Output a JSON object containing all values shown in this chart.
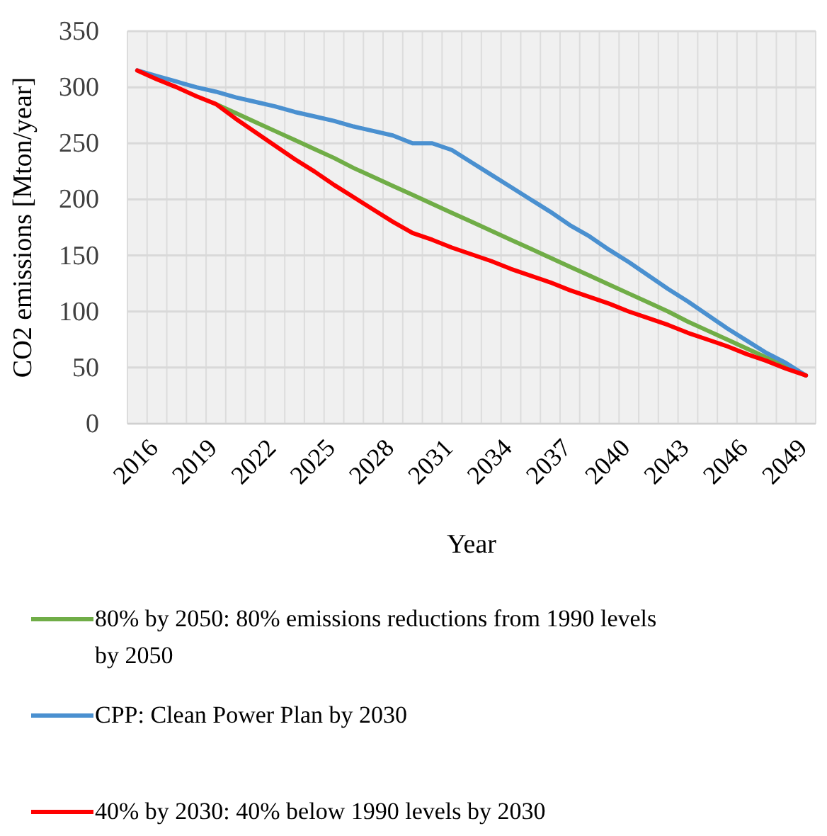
{
  "chart_data": {
    "type": "line",
    "xlabel": "Year",
    "ylabel": "CO2 emissions [Mton/year]",
    "categories": [
      "2016",
      null,
      null,
      "2019",
      null,
      null,
      "2022",
      null,
      null,
      "2025",
      null,
      null,
      "2028",
      null,
      null,
      "2031",
      null,
      null,
      "2034",
      null,
      null,
      "2037",
      null,
      null,
      "2040",
      null,
      null,
      "2043",
      null,
      null,
      "2046",
      null,
      null,
      "2049",
      null
    ],
    "ylim": [
      0,
      350
    ],
    "yticks": [
      0,
      50,
      100,
      150,
      200,
      250,
      300,
      350
    ],
    "grid": true,
    "legend": "bottom",
    "marker": "none",
    "line_style": "solid",
    "series": [
      {
        "name": "80% by 2050: 80% emissions reductions from 1990 levels by 2050",
        "color": "#70ad47",
        "values": [
          null,
          null,
          null,
          null,
          285,
          277,
          269,
          261,
          253,
          245,
          237,
          228,
          220,
          212,
          204,
          196,
          188,
          180,
          172,
          164,
          156,
          148,
          140,
          132,
          124,
          116,
          108,
          100,
          91,
          83,
          75,
          67,
          59,
          51,
          43
        ]
      },
      {
        "name": "CPP: Clean Power Plan by 2030",
        "color": "#4a90d0",
        "values": [
          315,
          310,
          305,
          300,
          296,
          291,
          287,
          283,
          278,
          274,
          270,
          265,
          261,
          257,
          250,
          250,
          244,
          233,
          222,
          211,
          200,
          189,
          177,
          167,
          155,
          144,
          132,
          120,
          109,
          97,
          85,
          74,
          63,
          54,
          43
        ]
      },
      {
        "name": "40% by 2030: 40% below 1990 levels by 2030",
        "color": "#ff0000",
        "values": [
          315,
          307,
          300,
          292,
          285,
          272,
          260,
          248,
          236,
          225,
          213,
          202,
          191,
          180,
          170,
          164,
          157,
          151,
          145,
          138,
          132,
          126,
          119,
          113,
          107,
          100,
          94,
          88,
          81,
          75,
          69,
          62,
          56,
          49,
          43
        ]
      }
    ]
  }
}
